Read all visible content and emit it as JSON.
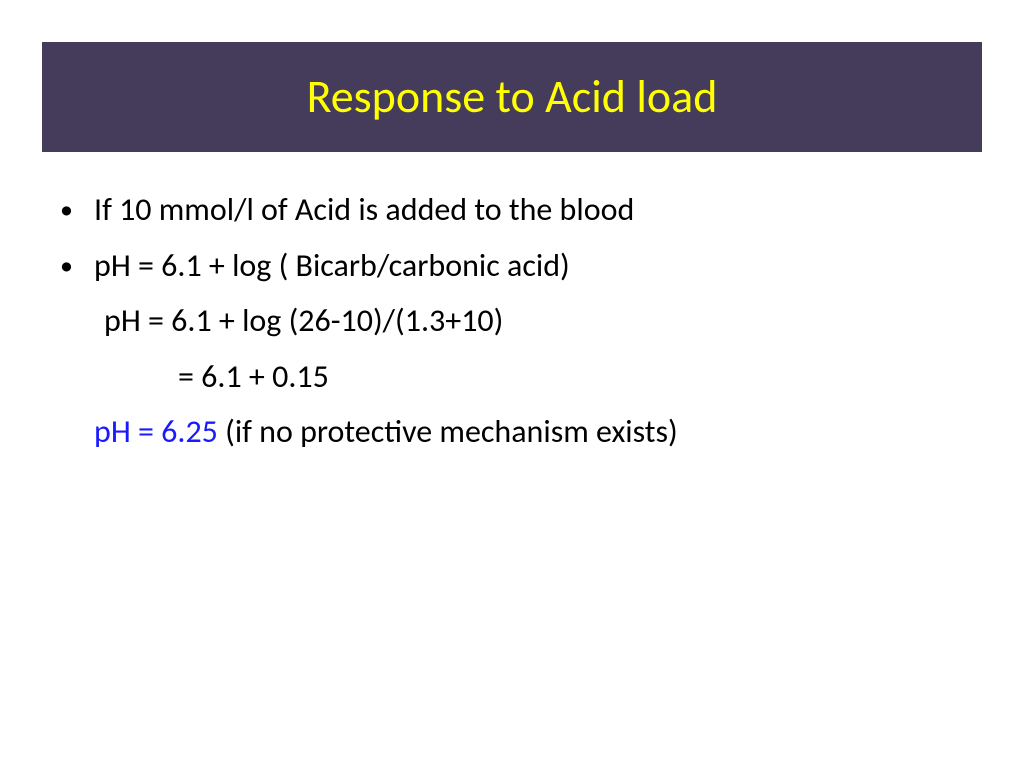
{
  "colors": {
    "title_bg": "#453b5a",
    "title_fg": "#ffff00",
    "body_text": "#000000",
    "highlight": "#1a1aff"
  },
  "title": "Response to Acid load",
  "bullets": [
    "If 10 mmol/l of Acid is added to the blood",
    "pH = 6.1 + log ( Bicarb/carbonic acid)"
  ],
  "calc": {
    "line1": "pH = 6.1 + log (26-10)/(1.3+10)",
    "line2": "= 6.1 + 0.15"
  },
  "result": {
    "ph": "pH = 6.25",
    "note": "  (if no protective mechanism exists)"
  }
}
